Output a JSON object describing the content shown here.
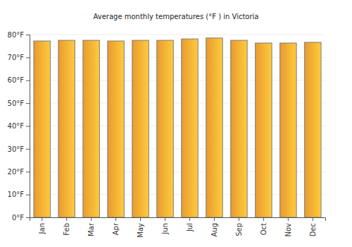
{
  "chart_data": {
    "type": "bar",
    "title": "Average monthly temperatures (°F ) in Victoria",
    "categories": [
      "Jan",
      "Feb",
      "Mar",
      "Apr",
      "May",
      "Jun",
      "Jul",
      "Aug",
      "Sep",
      "Oct",
      "Nov",
      "Dec"
    ],
    "values": [
      77.2,
      77.5,
      77.5,
      77.2,
      77.5,
      77.5,
      78.1,
      78.5,
      77.5,
      76.3,
      76.3,
      76.6
    ],
    "color": "#ffaa33",
    "ylim": [
      0,
      80
    ],
    "yticks": [
      {
        "value": 0,
        "label": "0°F"
      },
      {
        "value": 10,
        "label": "10°F"
      },
      {
        "value": 20,
        "label": "20°F"
      },
      {
        "value": 30,
        "label": "30°F"
      },
      {
        "value": 40,
        "label": "40°F"
      },
      {
        "value": 50,
        "label": "50°F"
      },
      {
        "value": 60,
        "label": "60°F"
      },
      {
        "value": 70,
        "label": "70°F"
      },
      {
        "value": 80,
        "label": "80°F"
      }
    ],
    "grid": true
  }
}
